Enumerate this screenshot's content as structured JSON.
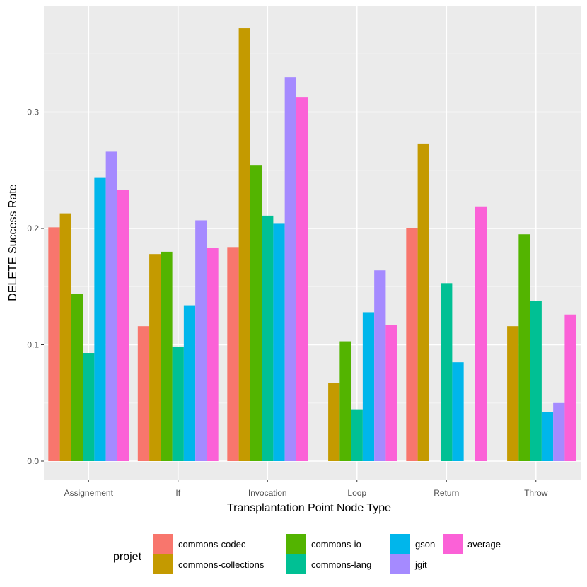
{
  "chart_data": {
    "type": "bar",
    "title": "",
    "xlabel": "Transplantation Point Node Type",
    "ylabel": "DELETE Success Rate",
    "ylim": [
      -0.02,
      0.39
    ],
    "yticks": [
      0.0,
      0.1,
      0.2,
      0.3
    ],
    "ytick_labels": [
      "0.0",
      "0.1",
      "0.2",
      "0.3"
    ],
    "grid": true,
    "legend_position": "bottom",
    "legend_title": "projet",
    "categories": [
      "Assignement",
      "If",
      "Invocation",
      "Loop",
      "Return",
      "Throw"
    ],
    "series": [
      {
        "name": "commons-codec",
        "color": "#F8766D",
        "values": [
          0.201,
          0.116,
          0.184,
          null,
          0.2,
          null
        ]
      },
      {
        "name": "commons-collections",
        "color": "#C49A00",
        "values": [
          0.213,
          0.178,
          0.372,
          0.067,
          0.273,
          0.116
        ]
      },
      {
        "name": "commons-io",
        "color": "#53B400",
        "values": [
          0.144,
          0.18,
          0.254,
          0.103,
          null,
          0.195
        ]
      },
      {
        "name": "commons-lang",
        "color": "#00C094",
        "values": [
          0.093,
          0.098,
          0.211,
          0.044,
          0.153,
          0.138
        ]
      },
      {
        "name": "gson",
        "color": "#00B6EB",
        "values": [
          0.244,
          0.134,
          0.204,
          0.128,
          0.085,
          0.042
        ]
      },
      {
        "name": "jgit",
        "color": "#A58AFF",
        "values": [
          0.266,
          0.207,
          0.33,
          0.164,
          null,
          0.05
        ]
      },
      {
        "name": "average",
        "color": "#FB61D7",
        "values": [
          0.233,
          0.183,
          0.313,
          0.117,
          0.219,
          0.126
        ]
      }
    ]
  },
  "colors": {
    "panel_background": "#EBEBEB",
    "grid_major": "#FFFFFF",
    "grid_minor": "#F5F5F5"
  }
}
